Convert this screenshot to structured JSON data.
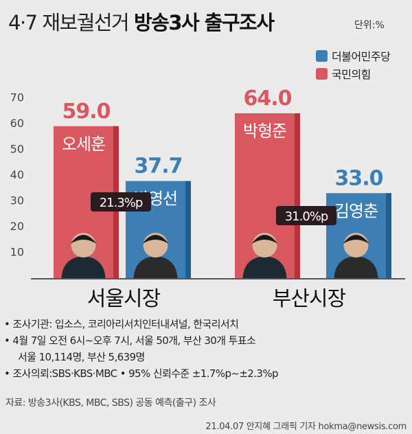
{
  "title": {
    "part1": "4·7 재보궐선거",
    "part2": "방송3사 출구조사"
  },
  "unit": "단위:%",
  "legend": [
    {
      "label": "더불어민주당",
      "color": "#3d7fb4"
    },
    {
      "label": "국민의힘",
      "color": "#d9575f"
    }
  ],
  "regions": [
    "서울시장",
    "부산시장"
  ],
  "notes": {
    "line1": "• 조사기관: 입소스, 코리아리서치인터내셔널, 한국리서치",
    "line2": "• 4월 7일 오전 6시∼오후 7시, 서울 50개, 부산 30개 투표소",
    "line3": "서울 10,114명, 부산 5,639명",
    "line4": "• 조사의뢰:SBS·KBS·MBC • 95% 신뢰수준 ±1.7%p∼±2.3%p"
  },
  "source": "자료: 방송3사(KBS, MBC, SBS) 공동 예측(출구) 조사",
  "credit": "21.04.07 안지혜 그래픽 기자 hokma@newsis.com",
  "chart_data": {
    "type": "bar",
    "title": "4·7 재보궐선거 방송3사 출구조사",
    "ylim": [
      0,
      70
    ],
    "yticks": [
      10,
      20,
      30,
      40,
      50,
      60,
      70
    ],
    "categories": [
      "서울시장",
      "부산시장"
    ],
    "series": [
      {
        "name": "국민의힘",
        "color": "#d9575f",
        "shade": "#b8323b",
        "values": [
          59.0,
          64.0
        ],
        "candidates": [
          "오세훈",
          "박형준"
        ]
      },
      {
        "name": "더불어민주당",
        "color": "#3d7fb4",
        "shade": "#215f91",
        "values": [
          37.7,
          33.0
        ],
        "candidates": [
          "박영선",
          "김영춘"
        ]
      }
    ],
    "value_labels": [
      "59.0",
      "64.0",
      "37.7",
      "33.0"
    ],
    "gaps": [
      "21.3%p",
      "31.0%p"
    ],
    "grid": false
  }
}
